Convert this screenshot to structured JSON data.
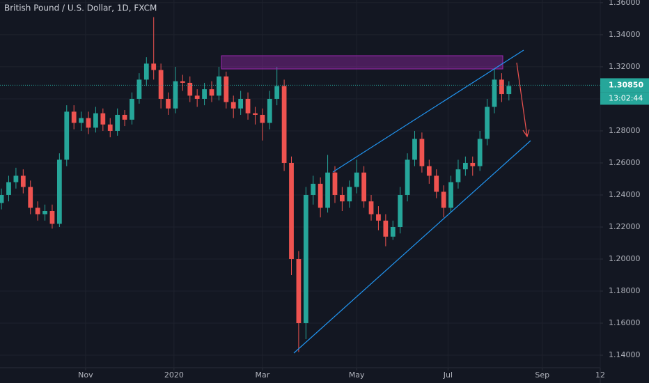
{
  "chart_data": {
    "type": "candlestick",
    "title": "British Pound / U.S. Dollar, 1D, FXCM",
    "x": [
      -58,
      -53,
      -48,
      -43,
      -38,
      -33,
      -28,
      -23,
      -18,
      -13,
      -8,
      -3,
      2,
      7,
      12,
      17,
      22,
      27,
      32,
      37,
      42,
      47,
      52,
      57,
      62,
      67,
      72,
      77,
      82,
      87,
      92,
      97,
      102,
      107,
      112,
      117,
      122,
      127,
      132,
      137,
      142,
      147,
      152,
      157,
      162,
      167,
      172,
      177,
      182,
      187,
      192,
      197,
      202,
      207,
      212,
      217,
      222,
      227,
      232,
      237,
      242,
      247,
      252,
      257,
      262,
      267,
      272,
      277,
      282,
      287,
      292
    ],
    "open": [
      1.235,
      1.24,
      1.248,
      1.252,
      1.245,
      1.232,
      1.228,
      1.23,
      1.222,
      1.262,
      1.292,
      1.285,
      1.288,
      1.282,
      1.291,
      1.284,
      1.28,
      1.29,
      1.287,
      1.3,
      1.312,
      1.322,
      1.318,
      1.3,
      1.294,
      1.311,
      1.31,
      1.302,
      1.3,
      1.306,
      1.302,
      1.314,
      1.298,
      1.294,
      1.3,
      1.291,
      1.29,
      1.285,
      1.3,
      1.308,
      1.26,
      1.2,
      1.16,
      1.24,
      1.247,
      1.232,
      1.254,
      1.24,
      1.236,
      1.245,
      1.254,
      1.236,
      1.228,
      1.224,
      1.214,
      1.22,
      1.24,
      1.262,
      1.275,
      1.258,
      1.252,
      1.242,
      1.232,
      1.248,
      1.256,
      1.26,
      1.258,
      1.275,
      1.295,
      1.312,
      1.303
    ],
    "high": [
      1.244,
      1.252,
      1.257,
      1.256,
      1.249,
      1.236,
      1.234,
      1.234,
      1.266,
      1.296,
      1.296,
      1.292,
      1.292,
      1.295,
      1.294,
      1.288,
      1.294,
      1.293,
      1.304,
      1.316,
      1.326,
      1.351,
      1.322,
      1.304,
      1.32,
      1.315,
      1.314,
      1.306,
      1.31,
      1.311,
      1.32,
      1.317,
      1.302,
      1.305,
      1.304,
      1.295,
      1.294,
      1.305,
      1.32,
      1.312,
      1.264,
      1.205,
      1.245,
      1.252,
      1.251,
      1.265,
      1.258,
      1.245,
      1.249,
      1.262,
      1.258,
      1.24,
      1.233,
      1.228,
      1.224,
      1.245,
      1.266,
      1.28,
      1.279,
      1.262,
      1.256,
      1.246,
      1.252,
      1.262,
      1.264,
      1.264,
      1.28,
      1.3,
      1.319,
      1.316,
      1.311
    ],
    "low": [
      1.231,
      1.236,
      1.244,
      1.241,
      1.228,
      1.224,
      1.224,
      1.219,
      1.22,
      1.258,
      1.281,
      1.28,
      1.278,
      1.279,
      1.28,
      1.276,
      1.277,
      1.283,
      1.284,
      1.297,
      1.308,
      1.312,
      1.294,
      1.29,
      1.291,
      1.305,
      1.298,
      1.295,
      1.296,
      1.298,
      1.299,
      1.294,
      1.288,
      1.29,
      1.287,
      1.284,
      1.274,
      1.281,
      1.296,
      1.255,
      1.19,
      1.142,
      1.15,
      1.234,
      1.226,
      1.229,
      1.235,
      1.23,
      1.232,
      1.241,
      1.232,
      1.224,
      1.218,
      1.208,
      1.212,
      1.216,
      1.236,
      1.258,
      1.254,
      1.247,
      1.238,
      1.226,
      1.229,
      1.244,
      1.252,
      1.252,
      1.255,
      1.271,
      1.291,
      1.298,
      1.299
    ],
    "close": [
      1.24,
      1.248,
      1.252,
      1.245,
      1.232,
      1.228,
      1.23,
      1.222,
      1.262,
      1.292,
      1.285,
      1.288,
      1.282,
      1.291,
      1.284,
      1.28,
      1.29,
      1.287,
      1.3,
      1.312,
      1.322,
      1.318,
      1.3,
      1.294,
      1.311,
      1.31,
      1.302,
      1.3,
      1.306,
      1.302,
      1.314,
      1.298,
      1.294,
      1.3,
      1.291,
      1.29,
      1.285,
      1.3,
      1.308,
      1.26,
      1.2,
      1.16,
      1.24,
      1.247,
      1.232,
      1.254,
      1.24,
      1.236,
      1.245,
      1.254,
      1.236,
      1.228,
      1.224,
      1.214,
      1.22,
      1.24,
      1.262,
      1.275,
      1.258,
      1.252,
      1.242,
      1.232,
      1.248,
      1.256,
      1.26,
      1.258,
      1.275,
      1.295,
      1.312,
      1.303,
      1.308
    ],
    "up_color": "#26a69a",
    "down_color": "#ef5350",
    "xlim": [
      -59,
      355
    ],
    "xticks": [
      {
        "value": 0,
        "label": "Nov"
      },
      {
        "value": 61,
        "label": "2020"
      },
      {
        "value": 122,
        "label": "Mar"
      },
      {
        "value": 187,
        "label": "May"
      },
      {
        "value": 250,
        "label": "Jul"
      },
      {
        "value": 315,
        "label": "Sep"
      },
      {
        "value": 355,
        "label": "12"
      }
    ],
    "ylim": [
      1.1322,
      1.3617
    ],
    "yticks": [
      {
        "value": 1.36,
        "label": "1.36000"
      },
      {
        "value": 1.34,
        "label": "1.34000"
      },
      {
        "value": 1.32,
        "label": "1.32000"
      },
      {
        "value": 1.3,
        "label": "1.30000"
      },
      {
        "value": 1.28,
        "label": "1.28000"
      },
      {
        "value": 1.26,
        "label": "1.26000"
      },
      {
        "value": 1.24,
        "label": "1.24000"
      },
      {
        "value": 1.22,
        "label": "1.22000"
      },
      {
        "value": 1.2,
        "label": "1.20000"
      },
      {
        "value": 1.18,
        "label": "1.18000"
      },
      {
        "value": 1.16,
        "label": "1.16000"
      },
      {
        "value": 1.14,
        "label": "1.14000"
      }
    ],
    "last_price": {
      "value": 1.3085,
      "label": "1.30850"
    },
    "countdown": "13:02:44",
    "grid": true
  }
}
